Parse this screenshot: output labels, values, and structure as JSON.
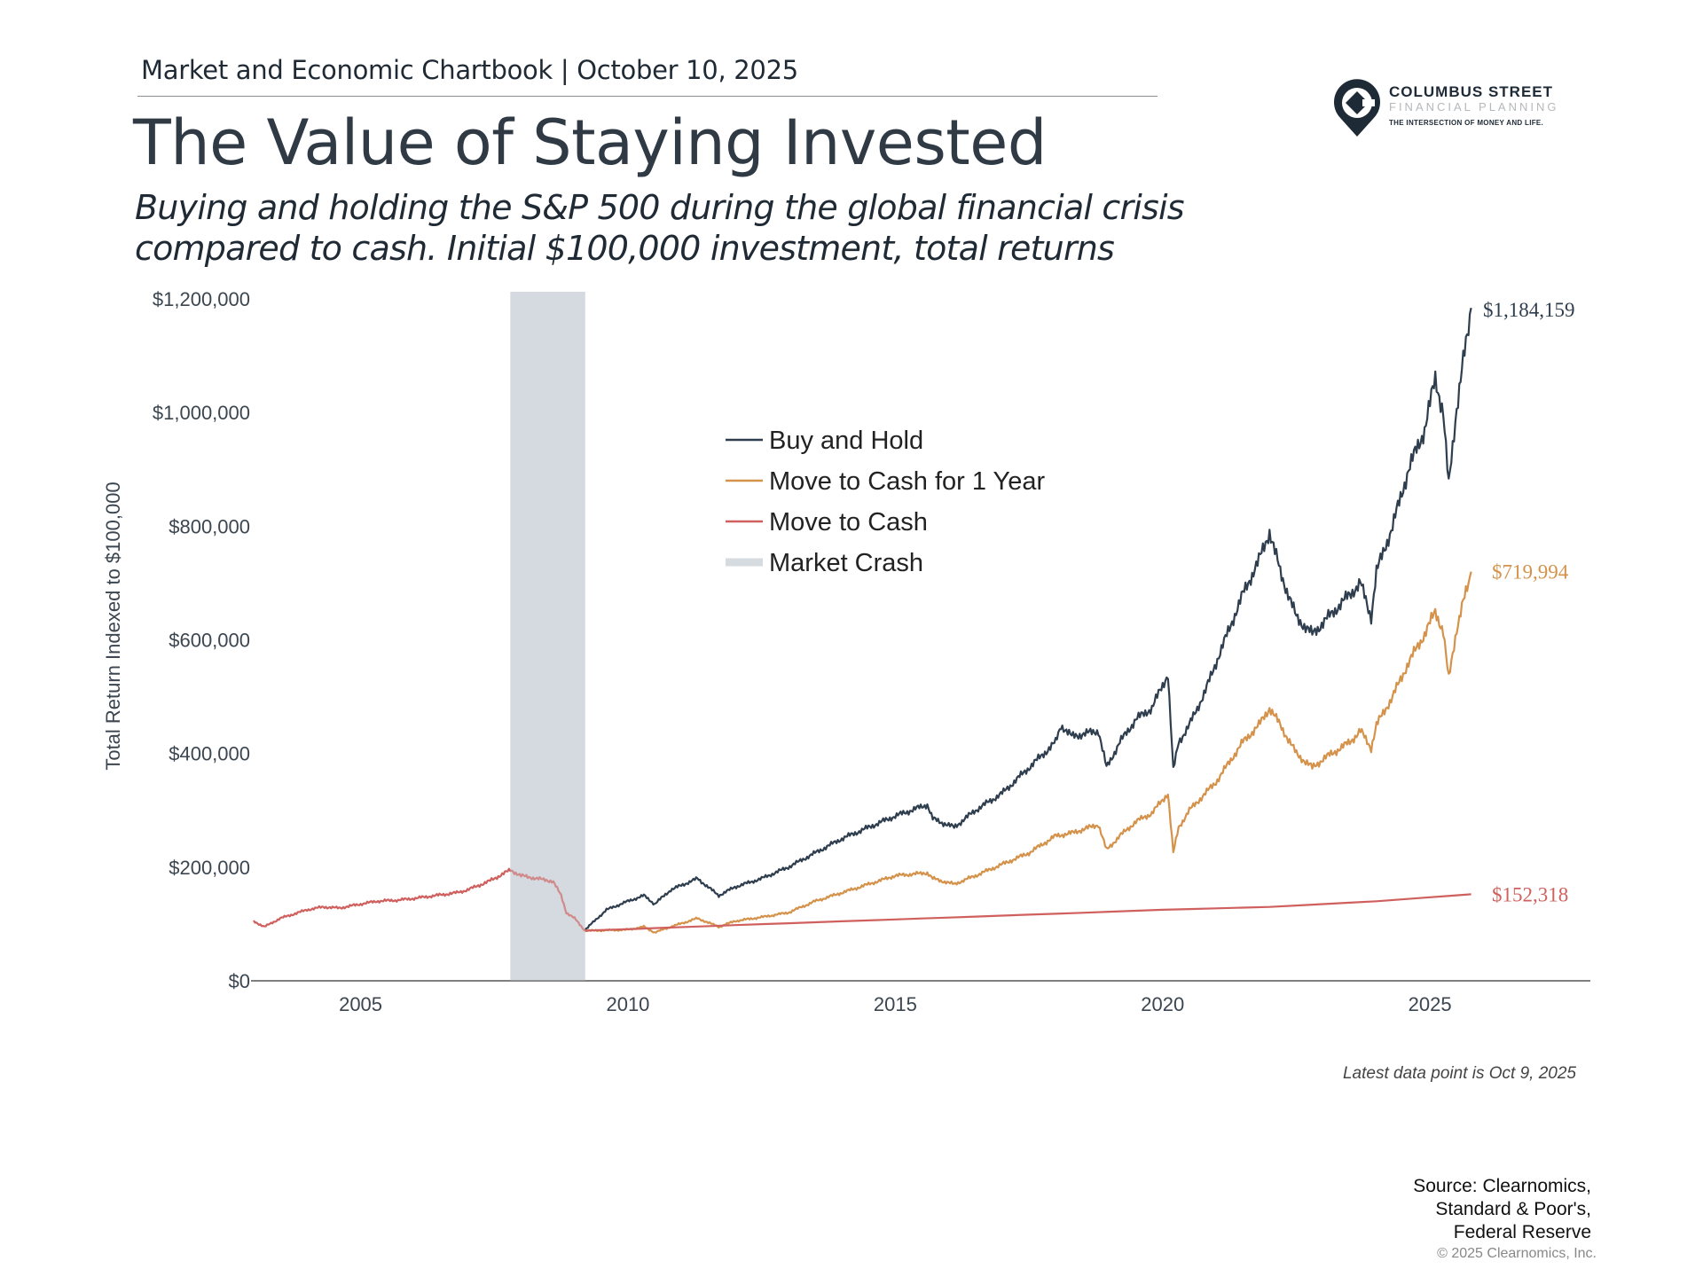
{
  "header": {
    "chartbook": "Market and Economic Chartbook | October 10, 2025",
    "title": "The Value of Staying Invested",
    "subtitle_line1": "Buying and holding the S&P 500 during the global financial crisis",
    "subtitle_line2": "compared to cash. Initial $100,000 investment, total returns"
  },
  "logo": {
    "line1": "COLUMBUS STREET",
    "line2": "FINANCIAL PLANNING",
    "line3": "THE INTERSECTION OF MONEY AND LIFE."
  },
  "chart_data": {
    "type": "line",
    "ylabel": "Total Return Indexed to $100,000",
    "xlabel": "",
    "ylim": [
      0,
      1200000
    ],
    "xlim": [
      2003,
      2028
    ],
    "y_ticks": [
      {
        "value": 0,
        "label": "$0"
      },
      {
        "value": 200000,
        "label": "$200,000"
      },
      {
        "value": 400000,
        "label": "$400,000"
      },
      {
        "value": 600000,
        "label": "$600,000"
      },
      {
        "value": 800000,
        "label": "$800,000"
      },
      {
        "value": 1000000,
        "label": "$1,000,000"
      },
      {
        "value": 1200000,
        "label": "$1,200,000"
      }
    ],
    "x_ticks": [
      {
        "value": 2005,
        "label": "2005"
      },
      {
        "value": 2010,
        "label": "2010"
      },
      {
        "value": 2015,
        "label": "2015"
      },
      {
        "value": 2020,
        "label": "2020"
      },
      {
        "value": 2025,
        "label": "2025"
      }
    ],
    "grid": false,
    "legend_position": "center-left",
    "shaded_region": {
      "name": "Market Crash",
      "x": [
        2007.8,
        2009.2
      ],
      "color": "#d5dbdf"
    },
    "series": [
      {
        "name": "Buy and Hold",
        "color": "#2f3e4e",
        "end_label": "$1,184,159",
        "x": [
          2009.2,
          2009.6,
          2010.0,
          2010.3,
          2010.5,
          2010.8,
          2011.3,
          2011.7,
          2012.0,
          2012.5,
          2013.0,
          2013.5,
          2014.0,
          2014.5,
          2015.0,
          2015.6,
          2015.7,
          2016.1,
          2016.5,
          2017.0,
          2017.5,
          2018.0,
          2018.1,
          2018.3,
          2018.8,
          2018.95,
          2019.2,
          2019.5,
          2019.8,
          2020.1,
          2020.2,
          2020.3,
          2020.5,
          2020.8,
          2021.0,
          2021.5,
          2021.8,
          2022.0,
          2022.2,
          2022.5,
          2022.8,
          2023.0,
          2023.5,
          2023.7,
          2023.9,
          2024.0,
          2024.3,
          2024.6,
          2024.9,
          2025.1,
          2025.25,
          2025.35,
          2025.5,
          2025.77
        ],
        "y": [
          90000,
          125000,
          140000,
          150000,
          135000,
          160000,
          180000,
          150000,
          165000,
          180000,
          200000,
          225000,
          250000,
          270000,
          290000,
          310000,
          285000,
          270000,
          300000,
          330000,
          375000,
          420000,
          450000,
          430000,
          440000,
          375000,
          420000,
          460000,
          480000,
          540000,
          370000,
          420000,
          450000,
          510000,
          560000,
          680000,
          740000,
          790000,
          720000,
          640000,
          610000,
          630000,
          680000,
          700000,
          640000,
          720000,
          800000,
          900000,
          970000,
          1060000,
          1000000,
          870000,
          1010000,
          1184159
        ]
      },
      {
        "name": "Move to Cash for 1 Year",
        "color": "#d4924a",
        "end_label": "$719,994",
        "x": [
          2009.2,
          2010.0,
          2010.3,
          2010.5,
          2010.8,
          2011.3,
          2011.7,
          2012.0,
          2012.5,
          2013.0,
          2013.5,
          2014.0,
          2014.5,
          2015.0,
          2015.6,
          2015.7,
          2016.1,
          2016.5,
          2017.0,
          2017.5,
          2018.0,
          2018.3,
          2018.8,
          2018.95,
          2019.2,
          2019.5,
          2019.8,
          2020.1,
          2020.2,
          2020.3,
          2020.5,
          2020.8,
          2021.0,
          2021.5,
          2021.8,
          2022.0,
          2022.2,
          2022.5,
          2022.8,
          2023.0,
          2023.5,
          2023.7,
          2023.9,
          2024.0,
          2024.3,
          2024.6,
          2024.9,
          2025.1,
          2025.25,
          2025.35,
          2025.5,
          2025.77
        ],
        "y": [
          88000,
          90000,
          95000,
          85000,
          95000,
          110000,
          95000,
          105000,
          112000,
          120000,
          140000,
          155000,
          170000,
          185000,
          190000,
          180000,
          170000,
          185000,
          205000,
          225000,
          255000,
          260000,
          275000,
          230000,
          255000,
          280000,
          295000,
          330000,
          225000,
          270000,
          300000,
          330000,
          350000,
          420000,
          450000,
          480000,
          450000,
          400000,
          375000,
          390000,
          420000,
          440000,
          410000,
          450000,
          500000,
          560000,
          610000,
          650000,
          615000,
          530000,
          620000,
          719994
        ]
      },
      {
        "name": "Move to Cash",
        "color": "#d0605e",
        "end_label": "$152,318",
        "x": [
          2003.0,
          2003.2,
          2003.5,
          2004.0,
          2004.3,
          2004.6,
          2005.0,
          2005.3,
          2005.7,
          2006.0,
          2006.4,
          2006.8,
          2007.0,
          2007.4,
          2007.8,
          2008.0,
          2008.3,
          2008.6,
          2008.75,
          2008.85,
          2009.0,
          2009.2,
          2012.0,
          2015.0,
          2018.0,
          2020.0,
          2022.0,
          2024.0,
          2025.77
        ],
        "y": [
          105000,
          95000,
          110000,
          125000,
          130000,
          128000,
          135000,
          140000,
          142000,
          145000,
          150000,
          155000,
          160000,
          175000,
          195000,
          185000,
          180000,
          175000,
          150000,
          120000,
          110000,
          88000,
          98000,
          108000,
          118000,
          125000,
          130000,
          140000,
          152318
        ]
      }
    ]
  },
  "footer": {
    "latest": "Latest data point is Oct 9, 2025",
    "source_line1": "Source: Clearnomics,",
    "source_line2": "Standard & Poor's,",
    "source_line3": "Federal Reserve",
    "copyright": "© 2025 Clearnomics, Inc."
  }
}
